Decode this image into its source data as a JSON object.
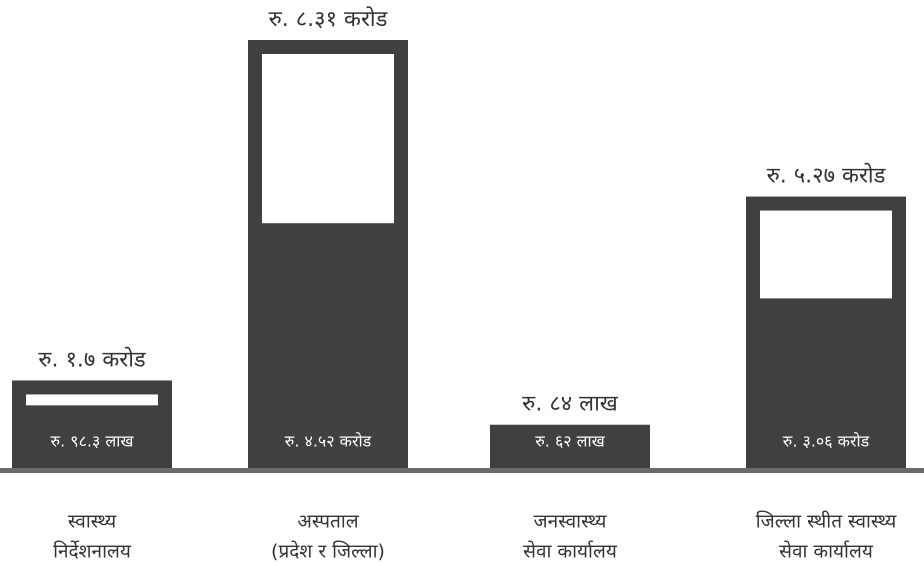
{
  "chart_data": {
    "type": "bar",
    "categories": [
      [
        "स्वास्थ्य",
        "निर्देशनालय"
      ],
      [
        "अस्पताल",
        "(प्रदेश र जिल्ला)"
      ],
      [
        "जनस्वास्थ्य",
        "सेवा कार्यालय"
      ],
      [
        "जिल्ला स्थीत स्वास्थ्य",
        "सेवा कार्यालय"
      ]
    ],
    "series": [
      {
        "color": "#404040",
        "values": [
          170,
          831,
          84,
          527
        ],
        "value_labels": [
          "रु. १.७ करोड",
          "रु. ८.३१ करोड",
          "रु. ८४ लाख",
          "रु. ५.२७ करोड"
        ]
      },
      {
        "color": "#404040",
        "values": [
          98.3,
          452,
          62,
          306
        ],
        "value_labels": [
          "रु. ९८.३ लाख",
          "रु. ४.५२ करोड",
          "रु. ६२ लाख",
          "रु. ३.०६ करोड"
        ]
      }
    ]
  }
}
